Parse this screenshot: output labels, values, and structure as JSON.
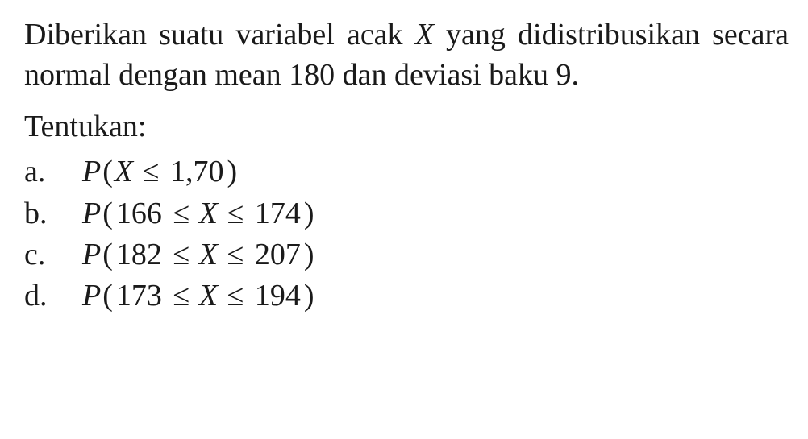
{
  "text": {
    "paragraph_parts": {
      "pre_x": "Diberikan suatu variabel acak ",
      "x": "X",
      "post_x": " yang di­distribusikan secara normal dengan mean 180 dan deviasi baku 9."
    },
    "heading": "Tentukan:",
    "items": [
      {
        "enum": "a.",
        "expr_plain": "P(X ≤ 1,70)"
      },
      {
        "enum": "b.",
        "expr_plain": "P(166 ≤ X ≤ 174)"
      },
      {
        "enum": "c.",
        "expr_plain": "P(182 ≤ X ≤ 207)"
      },
      {
        "enum": "d.",
        "expr_plain": "P(173 ≤ X ≤ 194)"
      }
    ],
    "math": {
      "a": {
        "P": "P",
        "lp": "(",
        "X": "X",
        "le": " ≤ ",
        "v1": "1,70",
        "rp": ")"
      },
      "b": {
        "P": "P",
        "lp": "(",
        "v1": "166",
        "le1": " ≤ ",
        "X": "X",
        "le2": " ≤ ",
        "v2": "174",
        "rp": ")"
      },
      "c": {
        "P": "P",
        "lp": "(",
        "v1": "182",
        "le1": " ≤ ",
        "X": "X",
        "le2": " ≤ ",
        "v2": "207",
        "rp": ")"
      },
      "d": {
        "P": "P",
        "lp": "(",
        "v1": "173",
        "le1": " ≤ ",
        "X": "X",
        "le2": " ≤ ",
        "v2": "194",
        "rp": ")"
      }
    }
  },
  "style": {
    "font_family": "Times New Roman",
    "font_size_pt": 28,
    "text_color": "#1a1a1a",
    "background_color": "#ffffff"
  }
}
